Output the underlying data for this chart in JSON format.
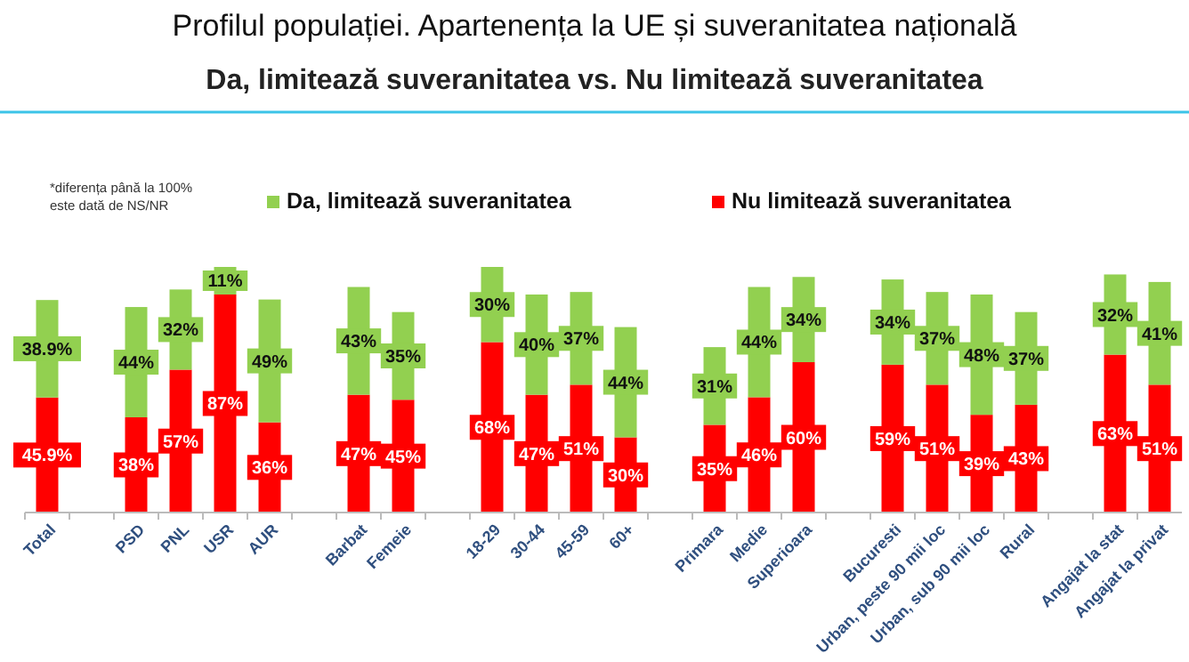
{
  "chart_data": {
    "type": "bar",
    "stacked": true,
    "relative": false,
    "title": "Profilul populației. Apartenența la UE și suveranitatea națională",
    "subtitle": "Da, limitează suveranitatea vs. Nu limitează suveranitatea",
    "legend": "top",
    "annotations": [
      "*diferența până la 100% este dată de NS/NR"
    ],
    "categories": [
      "Total",
      null,
      "PSD",
      "PNL",
      "USR",
      "AUR",
      null,
      "Barbat",
      "Femeie",
      null,
      "18-29",
      "30-44",
      "45-59",
      "60+",
      null,
      "Primara",
      "Medie",
      "Superioara",
      null,
      "Bucuresti",
      "Urban, peste 90 mii loc",
      "Urban, sub 90 mii loc",
      "Rural",
      null,
      "Angajat la stat",
      "Angajat la privat"
    ],
    "series": [
      {
        "name": "Nu limitează suveranitatea",
        "color": "#ff0000",
        "values": [
          45.9,
          null,
          38,
          57,
          87,
          36,
          null,
          47,
          45,
          null,
          68,
          47,
          51,
          30,
          null,
          35,
          46,
          60,
          null,
          59,
          51,
          39,
          43,
          null,
          63,
          51
        ],
        "value_labels": [
          "45.9%",
          null,
          "38%",
          "57%",
          "87%",
          "36%",
          null,
          "47%",
          "45%",
          null,
          "68%",
          "47%",
          "51%",
          "30%",
          null,
          "35%",
          "46%",
          "60%",
          null,
          "59%",
          "51%",
          "39%",
          "43%",
          null,
          "63%",
          "51%"
        ]
      },
      {
        "name": "Da, limitează suveranitatea",
        "color": "#92d050",
        "values": [
          38.9,
          null,
          44,
          32,
          11,
          49,
          null,
          43,
          35,
          null,
          30,
          40,
          37,
          44,
          null,
          31,
          44,
          34,
          null,
          34,
          37,
          48,
          37,
          null,
          32,
          41
        ],
        "value_labels": [
          "38.9%",
          null,
          "44%",
          "32%",
          "11%",
          "49%",
          null,
          "43%",
          "35%",
          null,
          "30%",
          "40%",
          "37%",
          "44%",
          null,
          "31%",
          "44%",
          "34%",
          null,
          "34%",
          "37%",
          "48%",
          "37%",
          null,
          "32%",
          "41%"
        ]
      }
    ]
  }
}
